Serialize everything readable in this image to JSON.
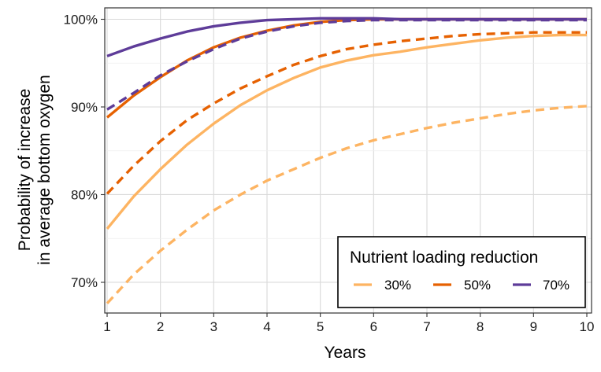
{
  "chart_data": {
    "type": "line",
    "xlabel": "Years",
    "ylabel_lines": [
      "Probability of increase",
      "in average bottom oxygen"
    ],
    "xlim": [
      1,
      10
    ],
    "ylim": [
      66.5,
      101.3
    ],
    "x_ticks": [
      1,
      2,
      3,
      4,
      5,
      6,
      7,
      8,
      9,
      10
    ],
    "x_tick_labels": [
      "1",
      "2",
      "3",
      "4",
      "5",
      "6",
      "7",
      "8",
      "9",
      "10"
    ],
    "y_ticks": [
      70,
      80,
      90,
      100
    ],
    "y_tick_labels": [
      "70%",
      "80%",
      "90%",
      "100%"
    ],
    "grid": true,
    "legend": {
      "title": "Nutrient loading reduction",
      "position": "bottom-right",
      "items": [
        {
          "label": "30%",
          "color": "#fdb462"
        },
        {
          "label": "50%",
          "color": "#e66101"
        },
        {
          "label": "70%",
          "color": "#5e3c99"
        }
      ]
    },
    "x": [
      1,
      1.5,
      2,
      2.5,
      3,
      3.5,
      4,
      4.5,
      5,
      5.5,
      6,
      6.5,
      7,
      7.5,
      8,
      8.5,
      9,
      9.5,
      10
    ],
    "series": [
      {
        "name": "30% solid",
        "group": "30%",
        "style": "solid",
        "color": "#fdb462",
        "values": [
          76.1,
          79.8,
          82.9,
          85.7,
          88.1,
          90.2,
          91.9,
          93.3,
          94.5,
          95.3,
          95.9,
          96.3,
          96.8,
          97.2,
          97.6,
          97.9,
          98.1,
          98.2,
          98.2
        ]
      },
      {
        "name": "30% dashed",
        "group": "30%",
        "style": "dashed",
        "color": "#fdb462",
        "values": [
          67.6,
          70.9,
          73.6,
          76.0,
          78.2,
          80.0,
          81.6,
          82.9,
          84.2,
          85.3,
          86.2,
          86.9,
          87.6,
          88.2,
          88.7,
          89.2,
          89.6,
          89.9,
          90.1
        ]
      },
      {
        "name": "50% solid",
        "group": "50%",
        "style": "solid",
        "color": "#e66101",
        "values": [
          88.8,
          91.3,
          93.4,
          95.3,
          96.8,
          97.9,
          98.7,
          99.3,
          99.7,
          99.9,
          100.0,
          100.0,
          100.0,
          100.0,
          100.0,
          100.0,
          100.0,
          100.0,
          100.0
        ]
      },
      {
        "name": "50% dashed",
        "group": "50%",
        "style": "dashed",
        "color": "#e66101",
        "values": [
          80.1,
          83.3,
          86.1,
          88.5,
          90.4,
          92.1,
          93.5,
          94.8,
          95.8,
          96.6,
          97.1,
          97.5,
          97.8,
          98.1,
          98.3,
          98.4,
          98.5,
          98.5,
          98.5
        ]
      },
      {
        "name": "70% solid",
        "group": "70%",
        "style": "solid",
        "color": "#5e3c99",
        "values": [
          95.8,
          96.9,
          97.8,
          98.6,
          99.2,
          99.6,
          99.9,
          100.0,
          100.1,
          100.1,
          100.1,
          100.0,
          100.0,
          100.0,
          100.0,
          100.0,
          100.0,
          100.0,
          100.0
        ]
      },
      {
        "name": "70% dashed",
        "group": "70%",
        "style": "dashed",
        "color": "#5e3c99",
        "values": [
          89.7,
          91.6,
          93.6,
          95.2,
          96.6,
          97.8,
          98.6,
          99.2,
          99.6,
          99.8,
          99.9,
          99.9,
          99.9,
          99.9,
          99.9,
          99.9,
          99.9,
          99.9,
          99.9
        ]
      }
    ]
  }
}
